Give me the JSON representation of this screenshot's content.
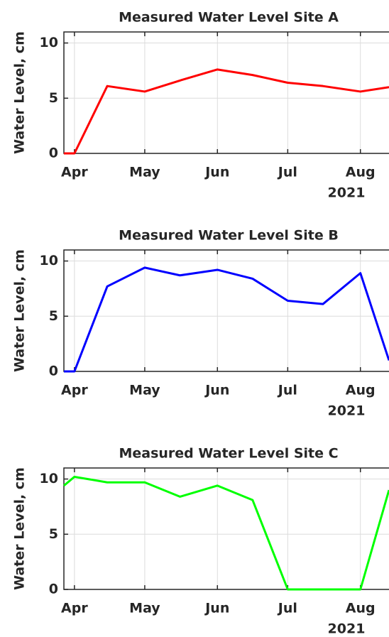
{
  "chart_data": [
    {
      "type": "line",
      "title": "Measured Water Level Site A",
      "y_label": "Water Level, cm",
      "x_year_label": "2021",
      "x": [
        -4.5,
        0,
        14,
        30,
        45,
        61,
        76,
        91,
        106,
        122,
        134.2
      ],
      "xlim": [
        -4.5,
        134.2
      ],
      "xticks": [
        {
          "value": 0,
          "label": "Apr"
        },
        {
          "value": 30,
          "label": "May"
        },
        {
          "value": 61,
          "label": "Jun"
        },
        {
          "value": 91,
          "label": "Jul"
        },
        {
          "value": 122,
          "label": "Aug"
        }
      ],
      "ylim": [
        0,
        11
      ],
      "yticks": [
        0,
        5,
        10
      ],
      "grid": true,
      "series": [
        {
          "color": "#ff0000",
          "values": [
            0,
            0,
            6.1,
            5.6,
            6.6,
            7.6,
            7.1,
            6.4,
            6.1,
            5.6,
            6.0
          ]
        }
      ]
    },
    {
      "type": "line",
      "title": "Measured Water Level Site B",
      "y_label": "Water Level, cm",
      "x_year_label": "2021",
      "x": [
        -4.5,
        0,
        14,
        30,
        45,
        61,
        76,
        91,
        106,
        122,
        134.2
      ],
      "xlim": [
        -4.5,
        134.2
      ],
      "xticks": [
        {
          "value": 0,
          "label": "Apr"
        },
        {
          "value": 30,
          "label": "May"
        },
        {
          "value": 61,
          "label": "Jun"
        },
        {
          "value": 91,
          "label": "Jul"
        },
        {
          "value": 122,
          "label": "Aug"
        }
      ],
      "ylim": [
        0,
        11
      ],
      "yticks": [
        0,
        5,
        10
      ],
      "grid": true,
      "series": [
        {
          "color": "#0000ff",
          "values": [
            0,
            0,
            7.7,
            9.4,
            8.7,
            9.2,
            8.4,
            6.4,
            6.1,
            8.9,
            1.0
          ]
        }
      ]
    },
    {
      "type": "line",
      "title": "Measured Water Level Site C",
      "y_label": "Water Level, cm",
      "x_year_label": "2021",
      "x": [
        -4.5,
        0,
        14,
        30,
        45,
        61,
        76,
        91,
        106,
        122,
        134.2
      ],
      "xlim": [
        -4.5,
        134.2
      ],
      "xticks": [
        {
          "value": 0,
          "label": "Apr"
        },
        {
          "value": 30,
          "label": "May"
        },
        {
          "value": 61,
          "label": "Jun"
        },
        {
          "value": 91,
          "label": "Jul"
        },
        {
          "value": 122,
          "label": "Aug"
        }
      ],
      "ylim": [
        0,
        11
      ],
      "yticks": [
        0,
        5,
        10
      ],
      "grid": true,
      "series": [
        {
          "color": "#00ff00",
          "values": [
            9.4,
            10.2,
            9.7,
            9.7,
            8.4,
            9.4,
            8.1,
            0,
            0,
            0,
            9.0
          ]
        }
      ]
    }
  ]
}
